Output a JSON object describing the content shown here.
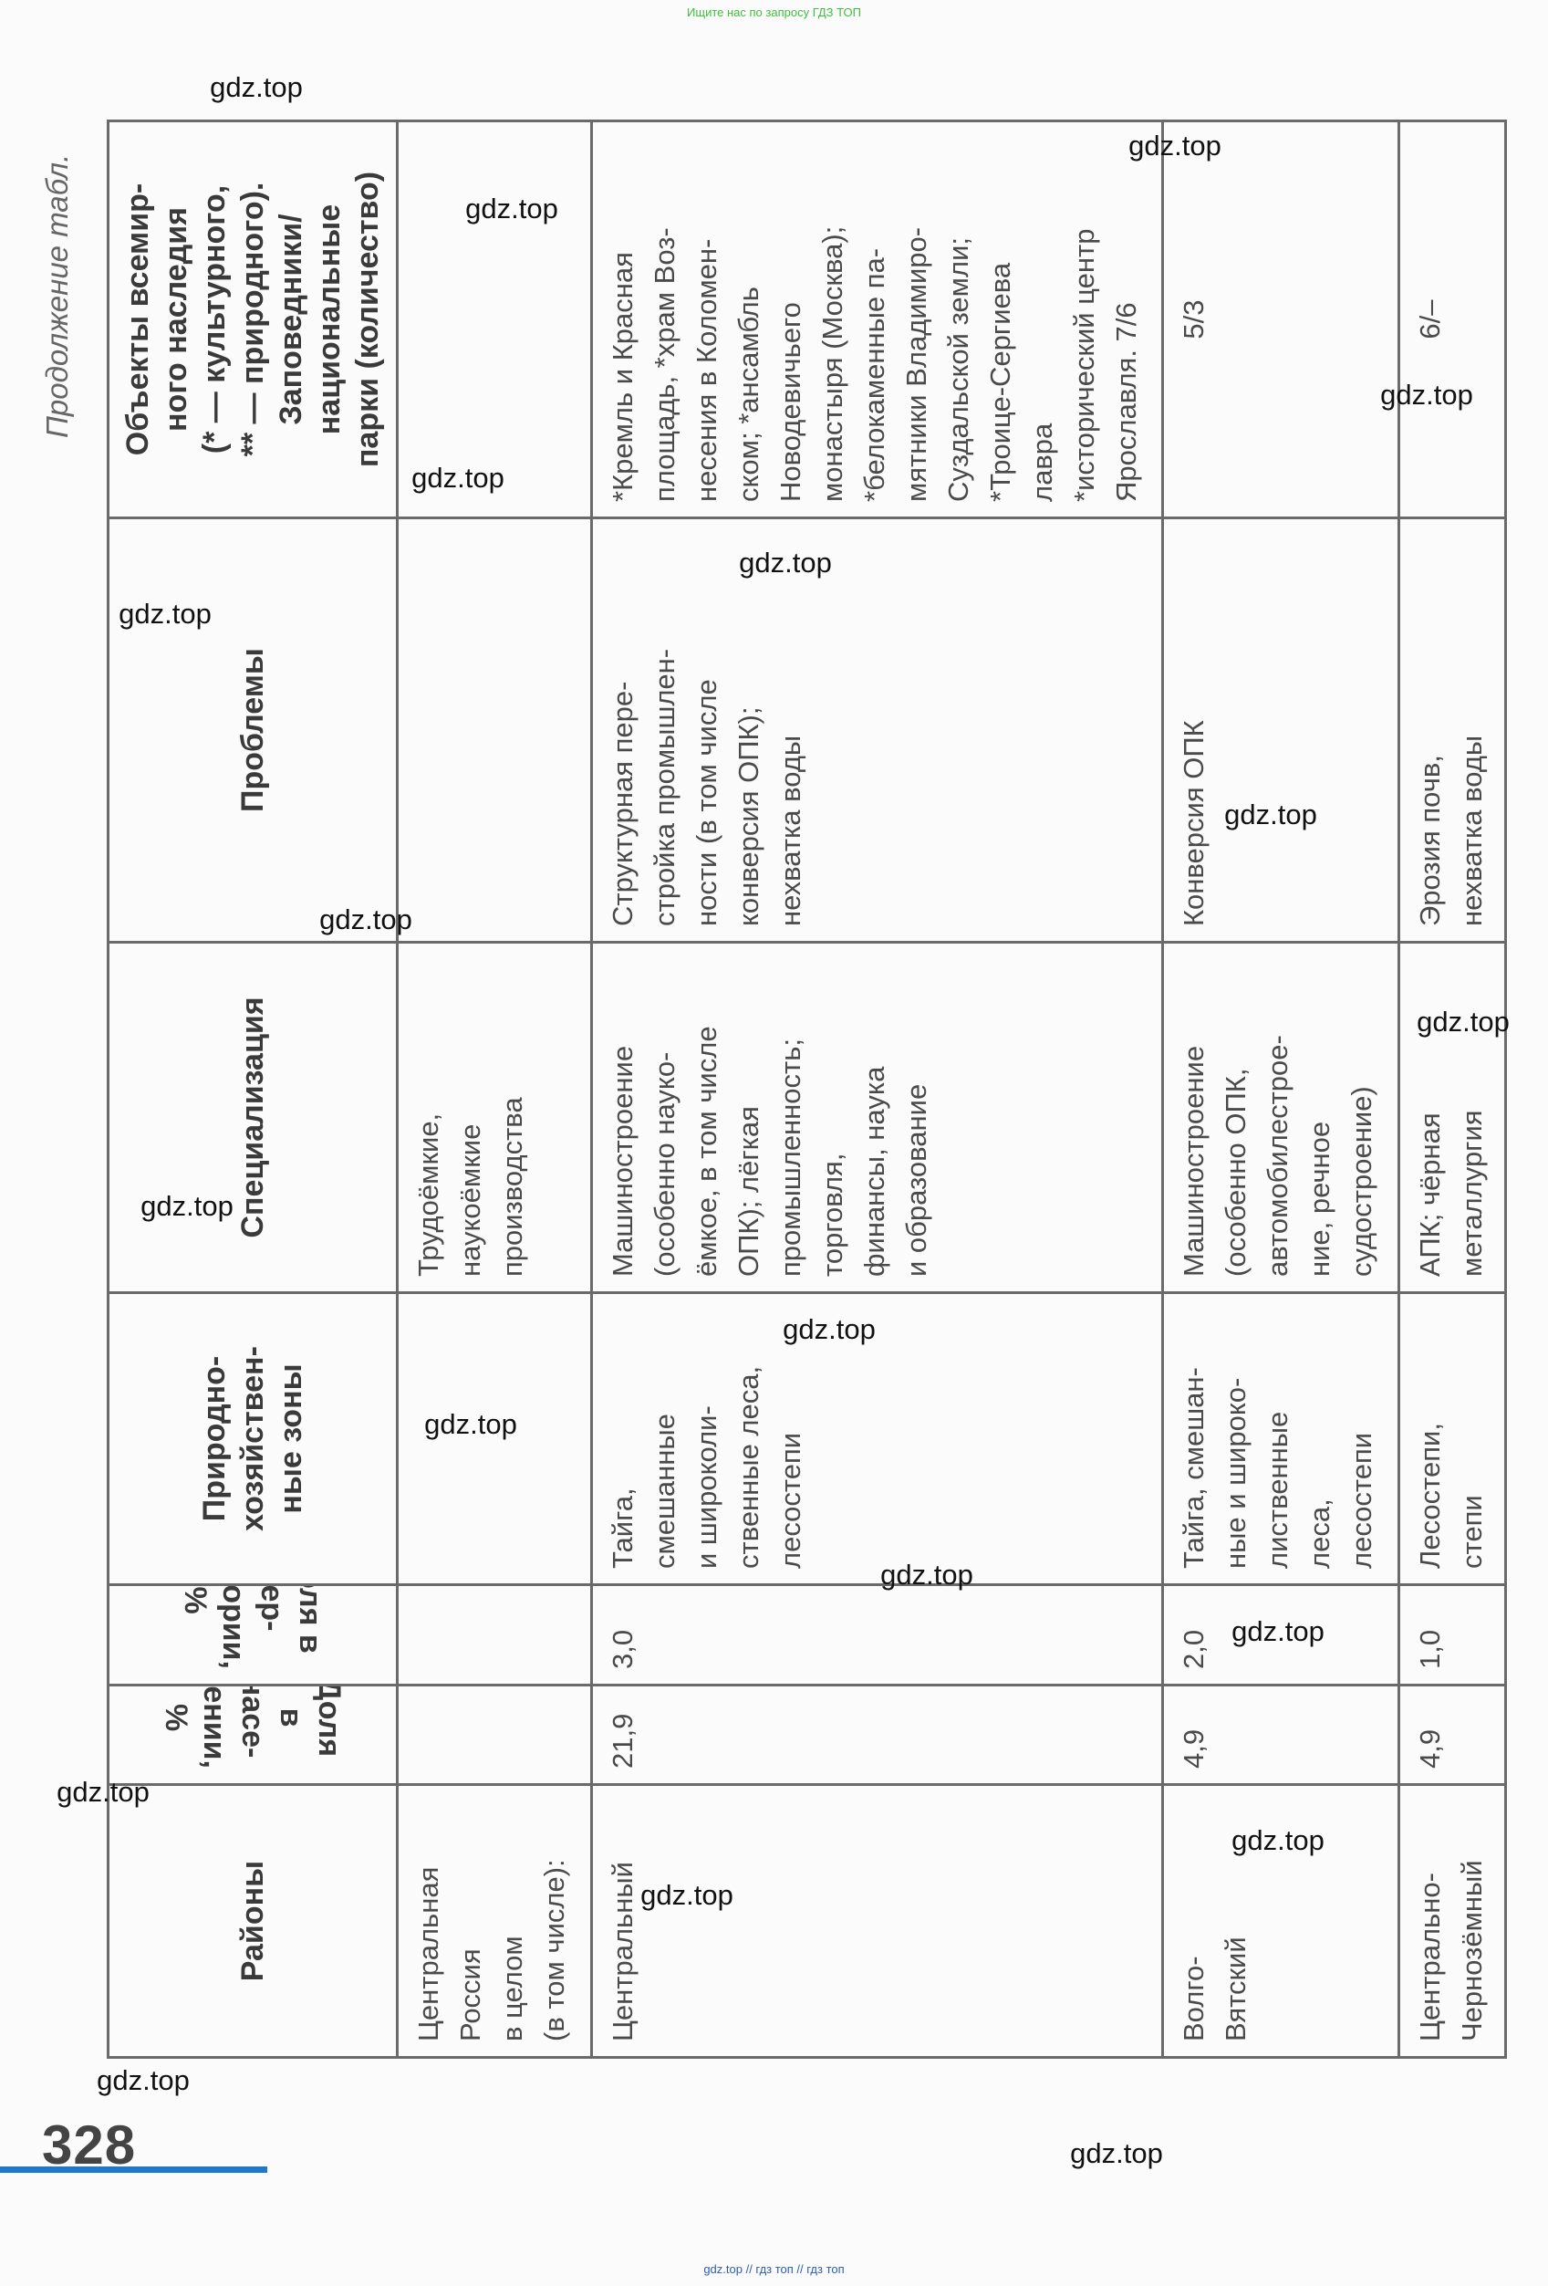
{
  "top_banner": "Ищите нас по запросу ГДЗ ТОП",
  "bottom_banner": "gdz.top // гдз топ // гдз топ",
  "continuation_label": "Продолжение табл.",
  "page_number": "328",
  "accent_color": "#1f78c8",
  "watermark": "gdz.top",
  "table": {
    "headers": [
      "Районы",
      "Доля в насе-\nлении, %",
      "Доля в тер-\nритории, %",
      "Природно-\nхозяйствен-\nные зоны",
      "Специализация",
      "Проблемы",
      "Объекты всемир-\nного наследия\n(* — культурного,\n** — природного).\nЗаповедники/\nнациональные\nпарки (количество)"
    ],
    "rows": [
      [
        "Центральная\nРоссия\nв целом\n(в том числе):",
        "",
        "",
        "",
        "Трудоёмкие,\nнаукоёмкие\nпроизводства",
        "",
        ""
      ],
      [
        "Центральный",
        "21,9",
        "3,0",
        "Тайга,\nсмешанные\nи широколи-\nственные леса,\nлесостепи",
        "Машиностроение\n(особенно науко-\nёмкое, в том числе\nОПК); лёгкая\nпромышленность;\nторговля,\nфинансы, наука\nи образование",
        "Структурная пере-\nстройка промышлен-\nности (в том числе\nконверсия ОПК);\nнехватка воды",
        "*Кремль и Красная\nплощадь, *храм Воз-\nнесения в Коломен-\nском; *ансамбль\nНоводевичьего\nмонастыря (Москва);\n*белокаменные па-\nмятники Владимиро-\nСуздальской земли;\n*Троице-Сергиева\nлавра\n*исторический центр\nЯрославля. 7/6"
      ],
      [
        "Волго-\nВятский",
        "4,9",
        "2,0",
        "Тайга, смешан-\nные и широко-\nлиственные\nлеса,\nлесостепи",
        "Машиностроение\n(особенно ОПК,\nавтомобилестрое-\nние, речное\nсудостроение)",
        "Конверсия ОПК",
        "5/3"
      ],
      [
        "Центрально-\nЧернозёмный",
        "4,9",
        "1,0",
        "Лесостепи,\nстепи",
        "АПК; чёрная\nметаллургия",
        "Эрозия почв,\nнехватка воды",
        "6/–"
      ]
    ]
  }
}
